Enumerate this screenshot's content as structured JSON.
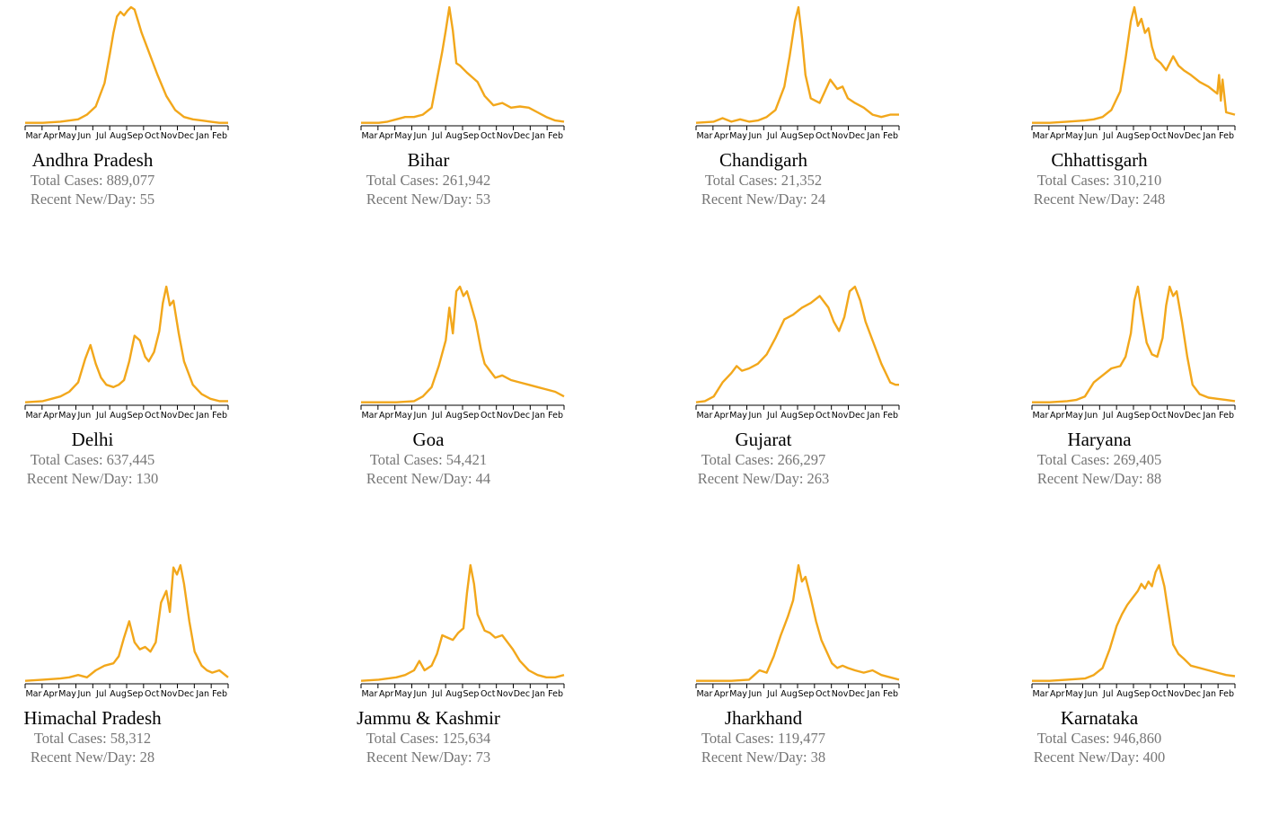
{
  "labels": {
    "total_prefix": "Total Cases: ",
    "recent_prefix": "Recent New/Day: "
  },
  "colors": {
    "line": "#F2A71B",
    "axis": "#000000",
    "stat_text": "#767676"
  },
  "chart_data": [
    {
      "type": "line",
      "title": "Andhra Pradesh",
      "total_cases": "889,077",
      "recent_new_per_day": "55",
      "x_ticks": [
        "Mar",
        "Apr",
        "May",
        "Jun",
        "Jul",
        "Aug",
        "Sep",
        "Oct",
        "Nov",
        "Dec",
        "Jan",
        "Feb"
      ],
      "x": [
        0,
        1,
        2,
        3,
        3.5,
        4,
        4.5,
        4.8,
        5,
        5.2,
        5.4,
        5.6,
        5.8,
        6,
        6.2,
        6.4,
        6.6,
        7,
        7.5,
        8,
        8.5,
        9,
        9.5,
        10,
        10.5,
        11,
        11.5
      ],
      "y": [
        1,
        1,
        2,
        4,
        8,
        15,
        35,
        60,
        78,
        92,
        96,
        93,
        97,
        100,
        98,
        88,
        78,
        62,
        42,
        24,
        12,
        6,
        4,
        3,
        2,
        1,
        1
      ]
    },
    {
      "type": "line",
      "title": "Bihar",
      "total_cases": "261,942",
      "recent_new_per_day": "53",
      "x_ticks": [
        "Mar",
        "Apr",
        "May",
        "Jun",
        "Jul",
        "Aug",
        "Sep",
        "Oct",
        "Nov",
        "Dec",
        "Jan",
        "Feb"
      ],
      "x": [
        0,
        1,
        1.5,
        2,
        2.5,
        3,
        3.5,
        4,
        4.3,
        4.6,
        4.8,
        5,
        5.2,
        5.4,
        5.6,
        6,
        6.3,
        6.6,
        7,
        7.5,
        8,
        8.5,
        9,
        9.5,
        10,
        10.5,
        11,
        11.5
      ],
      "y": [
        1,
        1,
        2,
        4,
        6,
        6,
        8,
        14,
        38,
        62,
        80,
        100,
        80,
        52,
        50,
        44,
        40,
        36,
        24,
        16,
        18,
        14,
        15,
        14,
        10,
        6,
        3,
        2
      ]
    },
    {
      "type": "line",
      "title": "Chandigarh",
      "total_cases": "21,352",
      "recent_new_per_day": "24",
      "x_ticks": [
        "Mar",
        "Apr",
        "May",
        "Jun",
        "Jul",
        "Aug",
        "Sep",
        "Oct",
        "Nov",
        "Dec",
        "Jan",
        "Feb"
      ],
      "x": [
        0,
        1,
        1.5,
        2,
        2.5,
        3,
        3.5,
        4,
        4.5,
        5,
        5.3,
        5.6,
        5.8,
        6,
        6.2,
        6.5,
        7,
        7.3,
        7.6,
        8,
        8.3,
        8.6,
        9,
        9.5,
        10,
        10.5,
        11,
        11.5
      ],
      "y": [
        1,
        2,
        5,
        2,
        4,
        2,
        3,
        6,
        12,
        32,
        58,
        88,
        100,
        74,
        42,
        22,
        18,
        28,
        38,
        30,
        32,
        22,
        18,
        14,
        8,
        6,
        8,
        8
      ]
    },
    {
      "type": "line",
      "title": "Chhattisgarh",
      "total_cases": "310,210",
      "recent_new_per_day": "248",
      "x_ticks": [
        "Mar",
        "Apr",
        "May",
        "Jun",
        "Jul",
        "Aug",
        "Sep",
        "Oct",
        "Nov",
        "Dec",
        "Jan",
        "Feb"
      ],
      "x": [
        0,
        1,
        2,
        3,
        3.5,
        4,
        4.5,
        5,
        5.3,
        5.6,
        5.8,
        6,
        6.2,
        6.4,
        6.6,
        6.8,
        7,
        7.3,
        7.6,
        8,
        8.3,
        8.6,
        9,
        9.5,
        10,
        10.5,
        10.6,
        10.7,
        10.8,
        11,
        11.5
      ],
      "y": [
        1,
        1,
        2,
        3,
        4,
        6,
        12,
        28,
        56,
        88,
        100,
        84,
        90,
        78,
        82,
        66,
        56,
        52,
        46,
        58,
        50,
        46,
        42,
        36,
        32,
        26,
        42,
        20,
        38,
        10,
        8
      ]
    },
    {
      "type": "line",
      "title": "Delhi",
      "total_cases": "637,445",
      "recent_new_per_day": "130",
      "x_ticks": [
        "Mar",
        "Apr",
        "May",
        "Jun",
        "Jul",
        "Aug",
        "Sep",
        "Oct",
        "Nov",
        "Dec",
        "Jan",
        "Feb"
      ],
      "x": [
        0,
        1,
        1.5,
        2,
        2.5,
        3,
        3.4,
        3.7,
        4,
        4.3,
        4.6,
        5,
        5.3,
        5.6,
        5.9,
        6.2,
        6.5,
        6.8,
        7,
        7.3,
        7.6,
        7.8,
        8,
        8.2,
        8.4,
        8.7,
        9,
        9.5,
        10,
        10.5,
        11,
        11.5
      ],
      "y": [
        1,
        2,
        4,
        6,
        10,
        18,
        38,
        50,
        34,
        22,
        16,
        14,
        16,
        20,
        36,
        58,
        54,
        40,
        36,
        44,
        62,
        86,
        100,
        84,
        88,
        60,
        36,
        16,
        8,
        4,
        2,
        2
      ]
    },
    {
      "type": "line",
      "title": "Goa",
      "total_cases": "54,421",
      "recent_new_per_day": "44",
      "x_ticks": [
        "Mar",
        "Apr",
        "May",
        "Jun",
        "Jul",
        "Aug",
        "Sep",
        "Oct",
        "Nov",
        "Dec",
        "Jan",
        "Feb"
      ],
      "x": [
        0,
        1,
        2,
        3,
        3.5,
        4,
        4.4,
        4.8,
        5,
        5.2,
        5.4,
        5.6,
        5.8,
        6,
        6.2,
        6.5,
        6.8,
        7,
        7.3,
        7.6,
        8,
        8.5,
        9,
        9.5,
        10,
        10.5,
        11,
        11.5
      ],
      "y": [
        1,
        1,
        1,
        2,
        6,
        14,
        32,
        54,
        82,
        60,
        96,
        100,
        92,
        96,
        86,
        70,
        46,
        34,
        28,
        22,
        24,
        20,
        18,
        16,
        14,
        12,
        10,
        6
      ]
    },
    {
      "type": "line",
      "title": "Gujarat",
      "total_cases": "266,297",
      "recent_new_per_day": "263",
      "x_ticks": [
        "Mar",
        "Apr",
        "May",
        "Jun",
        "Jul",
        "Aug",
        "Sep",
        "Oct",
        "Nov",
        "Dec",
        "Jan",
        "Feb"
      ],
      "x": [
        0,
        0.5,
        1,
        1.5,
        2,
        2.3,
        2.6,
        3,
        3.5,
        4,
        4.5,
        5,
        5.5,
        6,
        6.5,
        7,
        7.5,
        7.8,
        8.1,
        8.4,
        8.7,
        9,
        9.3,
        9.6,
        10,
        10.5,
        11,
        11.3,
        11.5
      ],
      "y": [
        1,
        2,
        6,
        18,
        26,
        32,
        28,
        30,
        34,
        42,
        56,
        72,
        76,
        82,
        86,
        92,
        82,
        70,
        62,
        74,
        96,
        100,
        88,
        70,
        54,
        34,
        18,
        16,
        16
      ]
    },
    {
      "type": "line",
      "title": "Haryana",
      "total_cases": "269,405",
      "recent_new_per_day": "88",
      "x_ticks": [
        "Mar",
        "Apr",
        "May",
        "Jun",
        "Jul",
        "Aug",
        "Sep",
        "Oct",
        "Nov",
        "Dec",
        "Jan",
        "Feb"
      ],
      "x": [
        0,
        1,
        2,
        2.5,
        3,
        3.5,
        4,
        4.5,
        5,
        5.3,
        5.6,
        5.8,
        6,
        6.2,
        6.5,
        6.8,
        7.1,
        7.4,
        7.6,
        7.8,
        8,
        8.2,
        8.5,
        8.8,
        9.1,
        9.5,
        10,
        10.5,
        11,
        11.5
      ],
      "y": [
        1,
        1,
        2,
        3,
        6,
        18,
        24,
        30,
        32,
        40,
        60,
        88,
        100,
        80,
        52,
        42,
        40,
        56,
        84,
        100,
        92,
        96,
        70,
        40,
        16,
        8,
        5,
        4,
        3,
        2
      ]
    },
    {
      "type": "line",
      "title": "Himachal Pradesh",
      "total_cases": "58,312",
      "recent_new_per_day": "28",
      "x_ticks": [
        "Mar",
        "Apr",
        "May",
        "Jun",
        "Jul",
        "Aug",
        "Sep",
        "Oct",
        "Nov",
        "Dec",
        "Jan",
        "Feb"
      ],
      "x": [
        0,
        1,
        2,
        2.5,
        3,
        3.5,
        4,
        4.5,
        5,
        5.3,
        5.6,
        5.9,
        6.2,
        6.5,
        6.8,
        7.1,
        7.4,
        7.7,
        8,
        8.2,
        8.4,
        8.6,
        8.8,
        9,
        9.3,
        9.6,
        10,
        10.3,
        10.6,
        11,
        11.5
      ],
      "y": [
        1,
        2,
        3,
        4,
        6,
        4,
        10,
        14,
        16,
        22,
        38,
        52,
        34,
        28,
        30,
        26,
        34,
        68,
        78,
        60,
        98,
        92,
        100,
        84,
        52,
        26,
        14,
        10,
        8,
        10,
        4
      ]
    },
    {
      "type": "line",
      "title": "Jammu & Kashmir",
      "total_cases": "125,634",
      "recent_new_per_day": "73",
      "x_ticks": [
        "Mar",
        "Apr",
        "May",
        "Jun",
        "Jul",
        "Aug",
        "Sep",
        "Oct",
        "Nov",
        "Dec",
        "Jan",
        "Feb"
      ],
      "x": [
        0,
        1,
        2,
        2.5,
        3,
        3.3,
        3.6,
        4,
        4.3,
        4.6,
        4.9,
        5.2,
        5.5,
        5.8,
        6,
        6.2,
        6.4,
        6.6,
        7,
        7.3,
        7.6,
        8,
        8.3,
        8.6,
        9,
        9.5,
        10,
        10.5,
        11,
        11.5
      ],
      "y": [
        1,
        2,
        4,
        6,
        10,
        18,
        10,
        14,
        24,
        40,
        38,
        36,
        42,
        46,
        76,
        100,
        84,
        58,
        44,
        42,
        38,
        40,
        34,
        28,
        18,
        10,
        6,
        4,
        4,
        6
      ]
    },
    {
      "type": "line",
      "title": "Jharkhand",
      "total_cases": "119,477",
      "recent_new_per_day": "38",
      "x_ticks": [
        "Mar",
        "Apr",
        "May",
        "Jun",
        "Jul",
        "Aug",
        "Sep",
        "Oct",
        "Nov",
        "Dec",
        "Jan",
        "Feb"
      ],
      "x": [
        0,
        1,
        2,
        3,
        3.3,
        3.6,
        4,
        4.4,
        4.8,
        5,
        5.2,
        5.5,
        5.8,
        6,
        6.2,
        6.5,
        6.8,
        7.1,
        7.4,
        7.7,
        8,
        8.3,
        8.6,
        9,
        9.5,
        10,
        10.5,
        11,
        11.5
      ],
      "y": [
        1,
        1,
        1,
        2,
        6,
        10,
        8,
        22,
        40,
        48,
        56,
        70,
        100,
        86,
        90,
        72,
        52,
        36,
        26,
        16,
        12,
        14,
        12,
        10,
        8,
        10,
        6,
        4,
        2
      ]
    },
    {
      "type": "line",
      "title": "Karnataka",
      "total_cases": "946,860",
      "recent_new_per_day": "400",
      "x_ticks": [
        "Mar",
        "Apr",
        "May",
        "Jun",
        "Jul",
        "Aug",
        "Sep",
        "Oct",
        "Nov",
        "Dec",
        "Jan",
        "Feb"
      ],
      "x": [
        0,
        1,
        2,
        3,
        3.5,
        4,
        4.4,
        4.8,
        5.1,
        5.4,
        5.7,
        6,
        6.2,
        6.4,
        6.6,
        6.8,
        7,
        7.2,
        7.5,
        7.8,
        8,
        8.3,
        8.6,
        9,
        9.5,
        10,
        10.5,
        11,
        11.5
      ],
      "y": [
        1,
        1,
        2,
        3,
        6,
        12,
        28,
        48,
        58,
        66,
        72,
        78,
        84,
        80,
        86,
        82,
        94,
        100,
        82,
        52,
        32,
        24,
        20,
        14,
        12,
        10,
        8,
        6,
        5
      ]
    }
  ]
}
